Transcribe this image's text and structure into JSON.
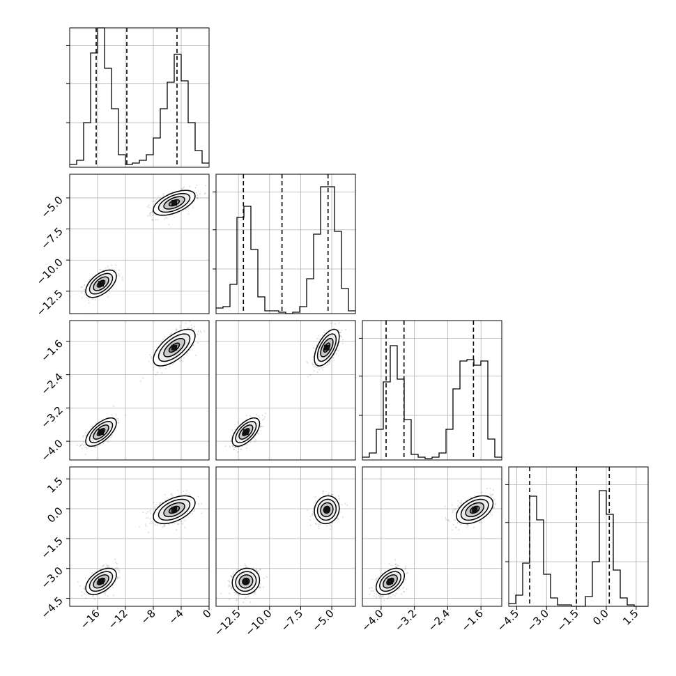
{
  "chart_data": {
    "type": "corner",
    "params": [
      {
        "name": "",
        "range": [
          -20,
          0
        ],
        "ticks": [
          -16,
          -12,
          -8,
          -4,
          0
        ],
        "tick_labels": [
          "−16",
          "−12",
          "−8",
          "−4",
          "0"
        ]
      },
      {
        "name": "",
        "range": [
          -14.3,
          -3.1
        ],
        "ticks": [
          -12.5,
          -10.0,
          -7.5,
          -5.0
        ],
        "tick_labels": [
          "−12.5",
          "−10.0",
          "−7.5",
          "−5.0"
        ]
      },
      {
        "name": "",
        "range": [
          -4.45,
          -1.1
        ],
        "ticks": [
          -4.0,
          -3.2,
          -2.4,
          -1.6
        ],
        "tick_labels": [
          "−4.0",
          "−3.2",
          "−2.4",
          "−1.6"
        ]
      },
      {
        "name": "",
        "range": [
          -4.9,
          2.1
        ],
        "ticks": [
          -4.5,
          -3.0,
          -1.5,
          0.0,
          1.5
        ],
        "tick_labels": [
          "−4.5",
          "−3.0",
          "−1.5",
          "0.0",
          "1.5"
        ]
      }
    ],
    "hist_ylim": [
      0,
      1.0
    ],
    "histograms": [
      {
        "param": 0,
        "bins": [
          -20,
          -19,
          -18,
          -17,
          -16,
          -15,
          -14,
          -13,
          -12,
          -11,
          -10,
          -9,
          -8,
          -7,
          -6,
          -5,
          -4,
          -3,
          -2,
          -1,
          0
        ],
        "counts": [
          0.02,
          0.05,
          0.32,
          0.82,
          1.0,
          0.71,
          0.42,
          0.09,
          0.02,
          0.03,
          0.05,
          0.09,
          0.21,
          0.42,
          0.61,
          0.81,
          0.62,
          0.32,
          0.12,
          0.03
        ],
        "quantiles": [
          -16.2,
          -11.8,
          -4.6
        ]
      },
      {
        "param": 1,
        "bins": [
          -14.3,
          -13.74,
          -13.18,
          -12.62,
          -12.06,
          -11.5,
          -10.94,
          -10.38,
          -9.82,
          -9.26,
          -8.7,
          -8.14,
          -7.58,
          -7.02,
          -6.46,
          -5.9,
          -5.34,
          -4.78,
          -4.22,
          -3.66,
          -3.1
        ],
        "counts": [
          0.04,
          0.05,
          0.21,
          0.69,
          0.77,
          0.46,
          0.12,
          0.02,
          0.02,
          0.01,
          0.0,
          0.01,
          0.05,
          0.25,
          0.57,
          0.91,
          0.91,
          0.59,
          0.18,
          0.02
        ],
        "quantiles": [
          -12.1,
          -9.0,
          -5.3
        ]
      },
      {
        "param": 2,
        "bins": [
          -4.45,
          -4.283,
          -4.115,
          -3.948,
          -3.78,
          -3.613,
          -3.445,
          -3.278,
          -3.11,
          -2.943,
          -2.775,
          -2.608,
          -2.44,
          -2.273,
          -2.105,
          -1.938,
          -1.77,
          -1.603,
          -1.435,
          -1.268,
          -1.1
        ],
        "counts": [
          0.02,
          0.05,
          0.22,
          0.56,
          0.82,
          0.58,
          0.29,
          0.04,
          0.02,
          0.01,
          0.02,
          0.05,
          0.22,
          0.51,
          0.71,
          0.72,
          0.68,
          0.71,
          0.15,
          0.02
        ],
        "quantiles": [
          -3.88,
          -3.45,
          -1.78
        ]
      },
      {
        "param": 3,
        "bins": [
          -4.9,
          -4.55,
          -4.2,
          -3.85,
          -3.5,
          -3.15,
          -2.8,
          -2.45,
          -2.1,
          -1.75,
          -1.4,
          -1.05,
          -0.7,
          -0.35,
          0.0,
          0.35,
          0.7,
          1.05,
          1.4,
          1.75,
          2.1
        ],
        "counts": [
          0.02,
          0.08,
          0.31,
          0.79,
          0.62,
          0.23,
          0.06,
          0.01,
          0.01,
          0.0,
          0.0,
          0.07,
          0.32,
          0.83,
          0.66,
          0.26,
          0.06,
          0.01,
          0.0,
          0.0
        ],
        "quantiles": [
          -3.85,
          -1.5,
          0.15
        ]
      }
    ],
    "clusters": [
      {
        "name": "",
        "mean": [
          -15.5,
          -11.9,
          -3.78,
          -3.65
        ],
        "sd": [
          1.1,
          0.55,
          0.17,
          0.33
        ]
      },
      {
        "name": "",
        "mean": [
          -5.0,
          -5.4,
          -1.75,
          -0.05
        ],
        "sd": [
          1.5,
          0.5,
          0.22,
          0.35
        ]
      }
    ],
    "correlations": {
      "0-1": 0.55,
      "0-2": 0.65,
      "1-2": 0.6,
      "0-3": 0.5,
      "1-3": 0.1,
      "2-3": 0.45
    },
    "levels": [
      "0.5-sigma",
      "1-sigma",
      "1.5-sigma",
      "2-sigma"
    ],
    "grid": true,
    "colors": {
      "contour": "#000000",
      "points": "#000000",
      "grid": "#b0b0b0",
      "fill": "#808080"
    }
  }
}
